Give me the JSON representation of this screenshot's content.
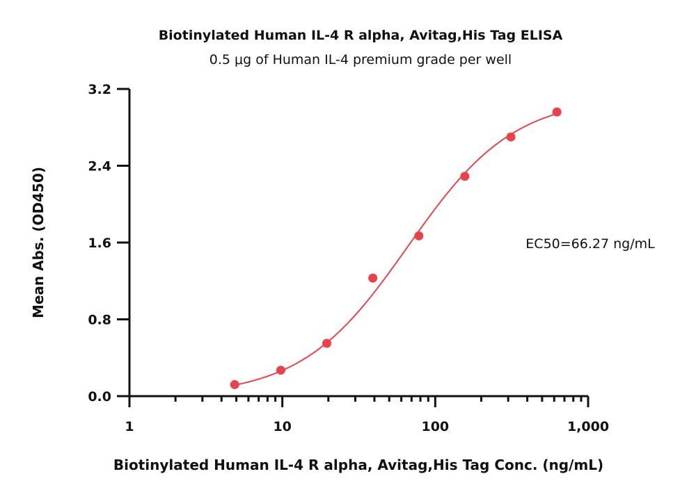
{
  "chart_data": {
    "type": "scatter",
    "title": "Biotinylated Human IL-4 R alpha, Avitag,His Tag ELISA",
    "subtitle": "0.5 μg of Human IL-4 premium grade per well",
    "xlabel": "Biotinylated Human IL-4 R alpha, Avitag,His Tag Conc. (ng/mL)",
    "ylabel": "Mean Abs. (OD450)",
    "x_scale": "log",
    "xlim": [
      1,
      1000
    ],
    "ylim": [
      0,
      3.2
    ],
    "x_ticks": [
      1,
      10,
      100,
      1000
    ],
    "x_tick_labels": [
      "1",
      "10",
      "100",
      "1,000"
    ],
    "y_ticks": [
      0,
      0.8,
      1.6,
      2.4,
      3.2
    ],
    "y_tick_labels": [
      "0.0",
      "0.8",
      "1.6",
      "2.4",
      "3.2"
    ],
    "grid": false,
    "color": "#e8434a",
    "series": [
      {
        "x": [
          4.88,
          9.77,
          19.53,
          39.06,
          78.13,
          156.25,
          312.5,
          625
        ],
        "y": [
          0.12,
          0.27,
          0.55,
          1.23,
          1.67,
          2.29,
          2.7,
          2.96
        ]
      }
    ],
    "fit": {
      "bottom": 0.0,
      "top": 3.12,
      "ec50": 66.27,
      "hill": 1.25
    },
    "annotation": "EC50=66.27 ng/mL"
  }
}
